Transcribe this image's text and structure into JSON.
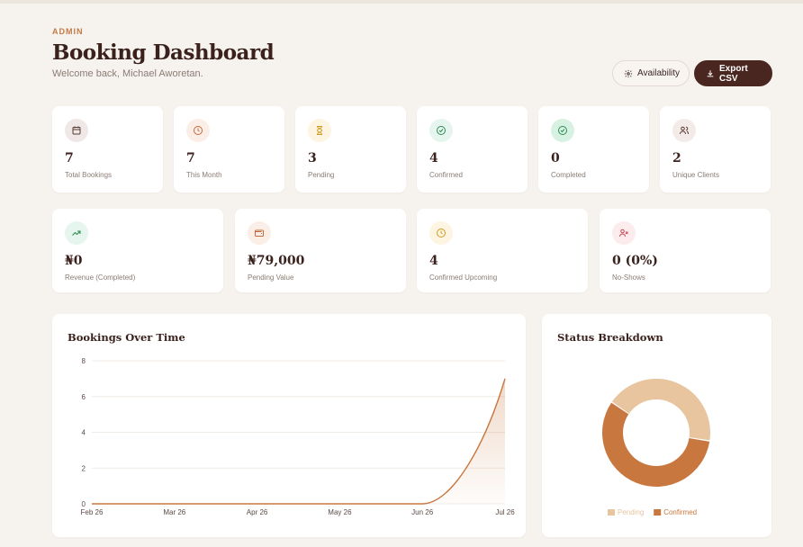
{
  "header": {
    "eyebrow": "ADMIN",
    "title": "Booking Dashboard",
    "subtitle": "Welcome back, Michael Aworetan."
  },
  "actions": {
    "availability": "Availability",
    "export": "Export CSV"
  },
  "stats_row1": [
    {
      "value": "7",
      "label": "Total Bookings",
      "icon": "calendar-icon",
      "icon_bg": "#efe8e6",
      "icon_color": "#5a3a33"
    },
    {
      "value": "7",
      "label": "This Month",
      "icon": "clock-icon",
      "icon_bg": "#fbeee6",
      "icon_color": "#c26a3a"
    },
    {
      "value": "3",
      "label": "Pending",
      "icon": "hourglass-icon",
      "icon_bg": "#fdf5e2",
      "icon_color": "#d19a22"
    },
    {
      "value": "4",
      "label": "Confirmed",
      "icon": "check-circle-icon",
      "icon_bg": "#e6f6ee",
      "icon_color": "#2f8a58"
    },
    {
      "value": "0",
      "label": "Completed",
      "icon": "check-circle-icon",
      "icon_bg": "#d7f2e2",
      "icon_color": "#2f8a58"
    },
    {
      "value": "2",
      "label": "Unique Clients",
      "icon": "users-icon",
      "icon_bg": "#f3ebe7",
      "icon_color": "#5a3a33"
    }
  ],
  "stats_row2": [
    {
      "value": "₦0",
      "label": "Revenue (Completed)",
      "icon": "trending-up-icon",
      "icon_bg": "#e6f6ee",
      "icon_color": "#2f8a58"
    },
    {
      "value": "₦79,000",
      "label": "Pending Value",
      "icon": "wallet-icon",
      "icon_bg": "#fbeee6",
      "icon_color": "#c26a3a"
    },
    {
      "value": "4",
      "label": "Confirmed Upcoming",
      "icon": "clock-icon",
      "icon_bg": "#fdf5e2",
      "icon_color": "#d19a22"
    },
    {
      "value": "0 (0%)",
      "label": "No-Shows",
      "icon": "user-x-icon",
      "icon_bg": "#fcecee",
      "icon_color": "#c8474f"
    }
  ],
  "bookings_panel": {
    "title": "Bookings Over Time"
  },
  "status_panel": {
    "title": "Status Breakdown"
  },
  "colors": {
    "accent": "#c8773e",
    "pending": "#e8c49f",
    "confirmed": "#c8773e",
    "brand_dark": "#4a2620"
  },
  "chart_data": [
    {
      "type": "area",
      "title": "Bookings Over Time",
      "x": [
        "Feb 26",
        "Mar 26",
        "Apr 26",
        "May 26",
        "Jun 26",
        "Jul 26"
      ],
      "values": [
        0,
        0,
        0,
        0,
        0,
        7
      ],
      "yticks": [
        0,
        2,
        4,
        6,
        8
      ],
      "ylim": [
        0,
        8
      ],
      "grid": true
    },
    {
      "type": "pie",
      "title": "Status Breakdown",
      "series": [
        {
          "name": "Pending",
          "value": 3,
          "color": "#e8c49f"
        },
        {
          "name": "Confirmed",
          "value": 4,
          "color": "#c8773e"
        }
      ],
      "legend": "bottom"
    }
  ]
}
